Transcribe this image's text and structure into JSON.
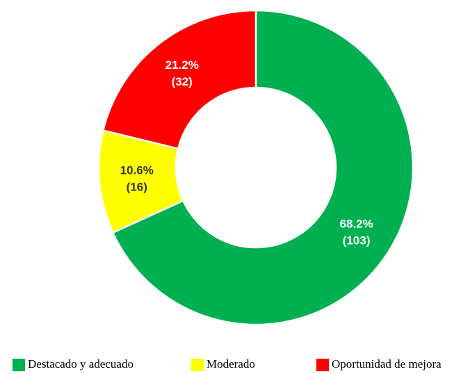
{
  "chart_data": {
    "type": "donut",
    "categories": [
      "Destacado y adecuado",
      "Moderado",
      "Oportunidad de mejora"
    ],
    "values": [
      68.2,
      10.6,
      21.2
    ],
    "value_labels": [
      "68.2%",
      "10.6%",
      "21.2%"
    ],
    "counts": [
      103,
      16,
      32
    ],
    "count_labels": [
      "(103)",
      "(16)",
      "(32)"
    ],
    "colors": [
      "#00b050",
      "#ffff00",
      "#ff0000"
    ],
    "label_colors": [
      "#ffffff",
      "#333333",
      "#ffffff"
    ],
    "legend": "bottom"
  }
}
